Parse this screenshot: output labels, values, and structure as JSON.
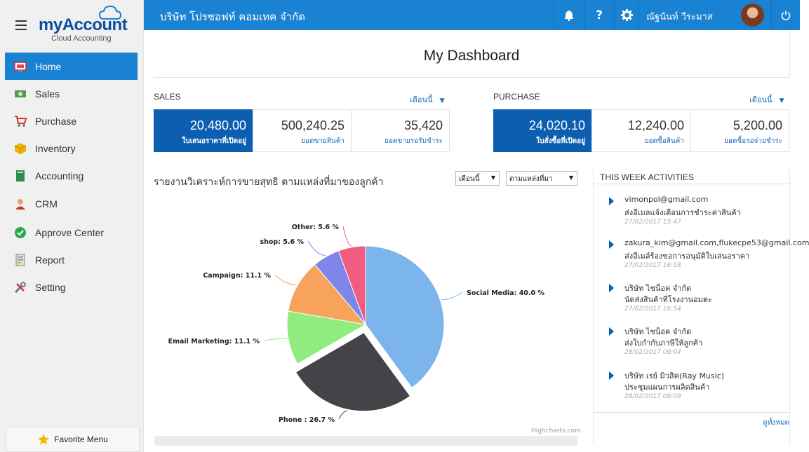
{
  "brand": {
    "name": "myAccount",
    "tagline": "Cloud Accounting"
  },
  "topbar": {
    "company": "บริษัท โปรซอฟท์ คอมเทค จำกัด",
    "user_name": "ณัฐนันท์ วีระมาส",
    "help_label": "?"
  },
  "sidebar": {
    "items": [
      {
        "label": "Home",
        "icon": "home-icon"
      },
      {
        "label": "Sales",
        "icon": "money-icon"
      },
      {
        "label": "Purchase",
        "icon": "cart-icon"
      },
      {
        "label": "Inventory",
        "icon": "box-icon"
      },
      {
        "label": "Accounting",
        "icon": "book-icon"
      },
      {
        "label": "CRM",
        "icon": "person-icon"
      },
      {
        "label": "Approve Center",
        "icon": "check-icon"
      },
      {
        "label": "Report",
        "icon": "report-icon"
      },
      {
        "label": "Setting",
        "icon": "tools-icon"
      }
    ],
    "favorite_label": "Favorite Menu"
  },
  "page_title": "My Dashboard",
  "sales": {
    "label": "SALES",
    "period": "เดือนนี้",
    "cards": [
      {
        "value": "20,480.00",
        "caption": "ใบเสนอราคาที่เปิดอยู่"
      },
      {
        "value": "500,240.25",
        "caption": "ยอดขายสินค้า"
      },
      {
        "value": "35,420",
        "caption": "ยอดขายรอรับชำระ"
      }
    ]
  },
  "purchase": {
    "label": "PURCHASE",
    "period": "เดือนนี้",
    "cards": [
      {
        "value": "24,020.10",
        "caption": "ใบสั่งซื้อที่เปิดอยู่"
      },
      {
        "value": "12,240.00",
        "caption": "ยอดซื้อสินค้า"
      },
      {
        "value": "5,200.00",
        "caption": "ยอดซื้อรอจ่ายชำระ"
      }
    ]
  },
  "chart_panel": {
    "title": "รายงานวิเคราะห์การขายสุทธิ ตามแหล่งที่มาของลูกค้า",
    "period_select": "เดือนนี้",
    "source_select": "ตามแหล่งที่มา",
    "credit": "Highcharts.com"
  },
  "chart_data": {
    "type": "pie",
    "slices": [
      {
        "name": "Social Media",
        "value": 40.0,
        "label": "Social Media: 40.0 %",
        "color": "#7cb5ec"
      },
      {
        "name": "Phone",
        "value": 26.7,
        "label": "Phone : 26.7 %",
        "color": "#434348",
        "sliced": true
      },
      {
        "name": "Email Marketing",
        "value": 11.1,
        "label": "Email Marketing: 11.1 %",
        "color": "#90ed7d"
      },
      {
        "name": "Campaign",
        "value": 11.1,
        "label": "Campaign: 11.1 %",
        "color": "#f7a35c"
      },
      {
        "name": "shop",
        "value": 5.6,
        "label": "shop: 5.6 %",
        "color": "#8085e9"
      },
      {
        "name": "Other",
        "value": 5.6,
        "label": "Other: 5.6 %",
        "color": "#f15c80"
      }
    ]
  },
  "activities": {
    "title": "THIS WEEK ACTIVITIES",
    "items": [
      {
        "who": "vimonpol@gmail.com",
        "what": "ส่งอีเมลแจ้งเตือนการชำระค่าสินค้า",
        "when": "27/02/2017 15:47"
      },
      {
        "who": "zakura_kim@gmail.com,flukecpe53@gmail.com",
        "what": "ส่งอีเมล์ร้องขอการอนุมัติใบเสนอราคา",
        "when": "27/02/2017 16:18"
      },
      {
        "who": "บริษัท ไชน็อค จำกัด",
        "what": "นัดส่งสินค้าที่โรงงานอมตะ",
        "when": "27/02/2017 16:54"
      },
      {
        "who": "บริษัท ไชน็อค จำกัด",
        "what": "ส่งใบกำกับภาษีให้ลูกค้า",
        "when": "28/02/2017 09:04"
      },
      {
        "who": "บริษัท เรย์ มิวสิค(Ray Music)",
        "what": "ประชุมแผนการผลิตสินค้า",
        "when": "28/02/2017 09:09"
      }
    ],
    "see_all": "ดูทั้งหมด"
  }
}
